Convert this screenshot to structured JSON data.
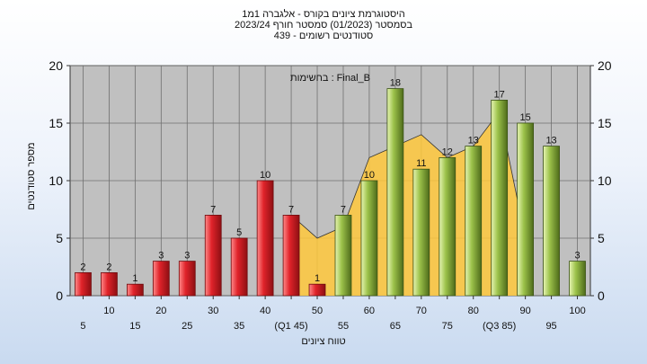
{
  "title": {
    "line1": "היסטוגרמת ציונים בקורס - אלגברה 1מ1",
    "line2": "בסמסטר  (01/2023)  סמסטר חורף  2023/24",
    "line3": "סטודנטים רשומים - 439"
  },
  "colors": {
    "plot_bg": "#c0c0c0",
    "red_bar": "#e0232a",
    "green_bar": "#9cc24a",
    "area_fill": "#ffc83c"
  },
  "chart_data": {
    "type": "bar",
    "categories": [
      "5",
      "10",
      "15",
      "20",
      "25",
      "30",
      "35",
      "40",
      "45",
      "50",
      "55",
      "60",
      "65",
      "70",
      "75",
      "80",
      "85",
      "90",
      "95",
      "100"
    ],
    "series": [
      {
        "values": [
          2,
          2,
          1,
          3,
          3,
          7,
          5,
          10,
          7,
          1,
          7,
          10,
          18,
          11,
          12,
          13,
          17,
          15,
          13,
          3
        ]
      }
    ],
    "area_values": [
      null,
      null,
      null,
      null,
      null,
      null,
      null,
      null,
      7,
      5,
      6,
      12,
      13,
      14,
      12,
      13,
      16,
      5,
      null,
      null
    ],
    "bar_colors": [
      "red",
      "red",
      "red",
      "red",
      "red",
      "red",
      "red",
      "red",
      "red",
      "red",
      "green",
      "green",
      "green",
      "green",
      "green",
      "green",
      "green",
      "green",
      "green",
      "green"
    ],
    "x_tick_labels_top": [
      "10",
      "20",
      "30",
      "40",
      "50",
      "60",
      "70",
      "80",
      "90",
      "100"
    ],
    "x_tick_labels_bottom": [
      "5",
      "15",
      "25",
      "35",
      "(Q1 45)",
      "55",
      "65",
      "75",
      "(Q3 85)",
      "95"
    ],
    "y_ticks": [
      0,
      5,
      10,
      15,
      20
    ],
    "ylim": [
      0,
      20
    ],
    "xlabel": "טווח ציונים",
    "ylabel": "מספר סטודנטים",
    "annotation": "בחשימות : Final_B",
    "grid": true
  }
}
